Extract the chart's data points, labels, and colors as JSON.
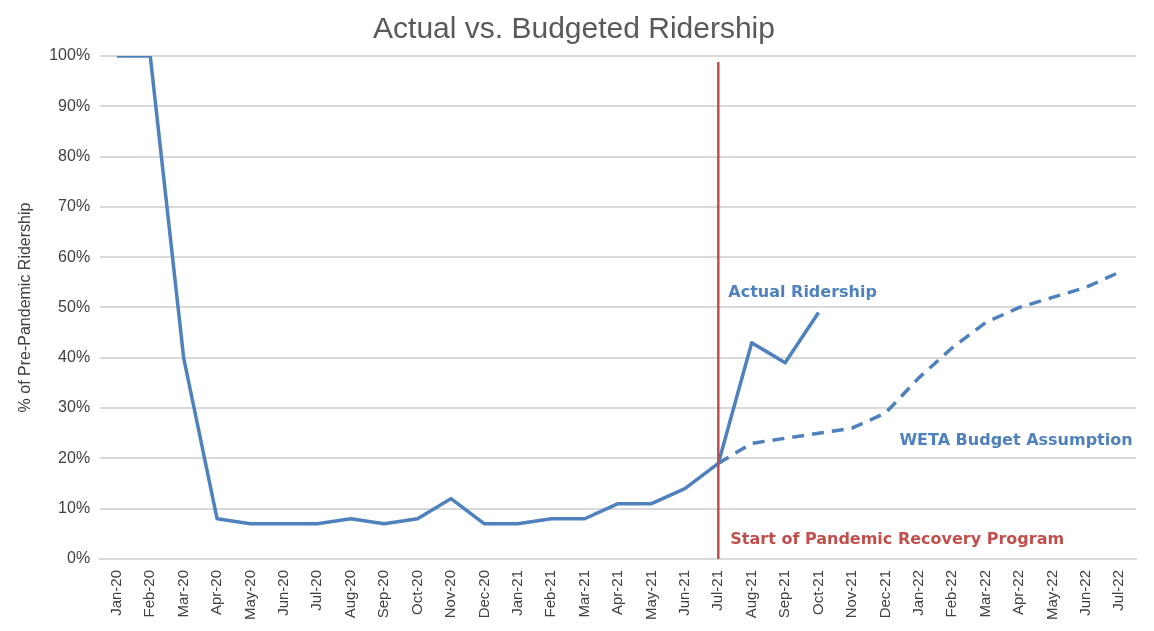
{
  "chart_data": {
    "type": "line",
    "title": "Actual vs. Budgeted Ridership",
    "ylabel": "% of Pre-Pandemic Ridership",
    "categories": [
      "Jan-20",
      "Feb-20",
      "Mar-20",
      "Apr-20",
      "May-20",
      "Jun-20",
      "Jul-20",
      "Aug-20",
      "Sep-20",
      "Oct-20",
      "Nov-20",
      "Dec-20",
      "Jan-21",
      "Feb-21",
      "Mar-21",
      "Apr-21",
      "May-21",
      "Jun-21",
      "Jul-21",
      "Aug-21",
      "Sep-21",
      "Oct-21",
      "Nov-21",
      "Dec-21",
      "Jan-22",
      "Feb-22",
      "Mar-22",
      "Apr-22",
      "May-22",
      "Jun-22",
      "Jul-22"
    ],
    "series": [
      {
        "name": "Actual Ridership",
        "color": "#4f81bd",
        "line_style": "solid",
        "values": [
          100,
          100,
          40,
          8,
          7,
          7,
          7,
          8,
          7,
          8,
          12,
          7,
          7,
          8,
          8,
          11,
          11,
          14,
          19,
          43,
          39,
          49,
          null,
          null,
          null,
          null,
          null,
          null,
          null,
          null,
          null
        ]
      },
      {
        "name": "WETA Budget Assumption",
        "color": "#4f81bd",
        "line_style": "dashed",
        "values": [
          null,
          null,
          null,
          null,
          null,
          null,
          null,
          null,
          null,
          null,
          null,
          null,
          null,
          null,
          null,
          null,
          null,
          null,
          19,
          23,
          24,
          25,
          26,
          29,
          36,
          42,
          47,
          50,
          52,
          54,
          57
        ]
      }
    ],
    "ylim": [
      0,
      100
    ],
    "yticks": [
      {
        "value": 0,
        "label": "0%"
      },
      {
        "value": 10,
        "label": "10%"
      },
      {
        "value": 20,
        "label": "20%"
      },
      {
        "value": 30,
        "label": "30%"
      },
      {
        "value": 40,
        "label": "40%"
      },
      {
        "value": 50,
        "label": "50%"
      },
      {
        "value": 60,
        "label": "60%"
      },
      {
        "value": 70,
        "label": "70%"
      },
      {
        "value": 80,
        "label": "80%"
      },
      {
        "value": 90,
        "label": "90%"
      },
      {
        "value": 100,
        "label": "100%"
      }
    ],
    "ref_lines": [
      {
        "axis": "x",
        "value": "Jul-21",
        "label": "Start of Pandemic Recovery Program",
        "color": "#c0504d"
      }
    ],
    "grid": "y",
    "legend": false,
    "marker": "none"
  }
}
